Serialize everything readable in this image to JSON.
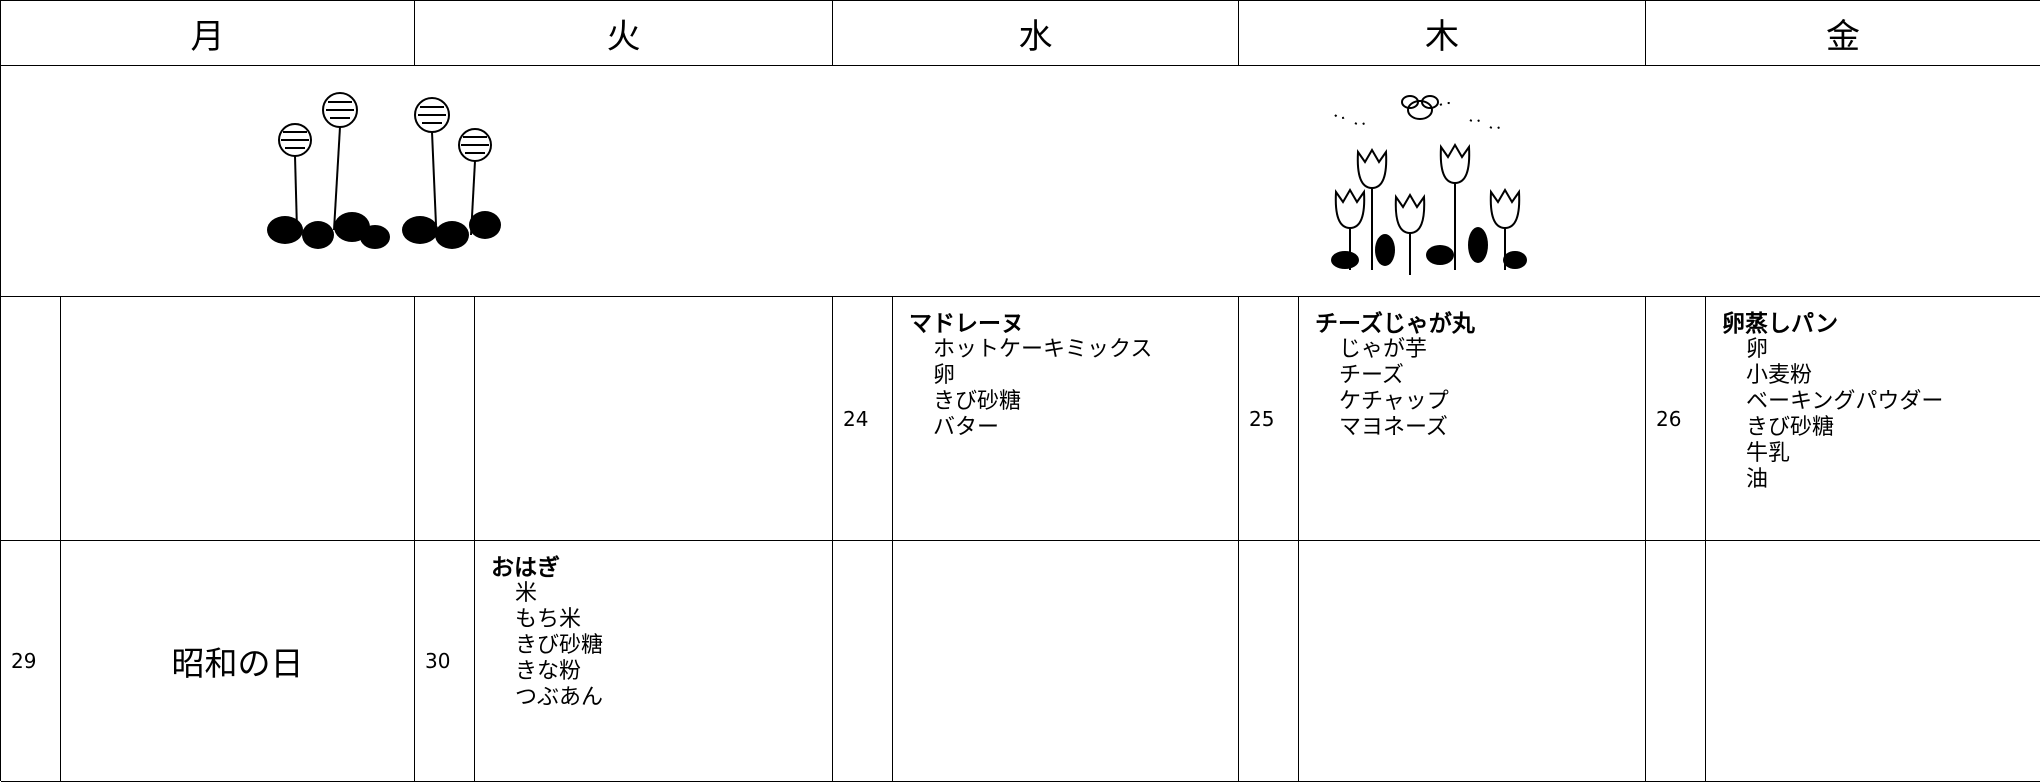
{
  "header": {
    "days": [
      "月",
      "火",
      "水",
      "木",
      "金"
    ]
  },
  "weeks": [
    {
      "cells": [
        {},
        {},
        {
          "day": "24",
          "title": "マドレーヌ",
          "items": [
            "ホットケーキミックス",
            "卵",
            "きび砂糖",
            "バター"
          ]
        },
        {
          "day": "25",
          "title": "チーズじゃが丸",
          "items": [
            "じゃが芋",
            "チーズ",
            "ケチャップ",
            "マヨネーズ"
          ]
        },
        {
          "day": "26",
          "title": "卵蒸しパン",
          "items": [
            "卵",
            "小麦粉",
            "ベーキングパウダー",
            "きび砂糖",
            "牛乳",
            "油"
          ]
        }
      ]
    },
    {
      "cells": [
        {
          "day": "29",
          "holiday": "昭和の日"
        },
        {
          "day": "30",
          "title": "おはぎ",
          "items": [
            "米",
            "もち米",
            "きび砂糖",
            "きな粉",
            "つぶあん"
          ]
        },
        {},
        {},
        {}
      ]
    }
  ]
}
